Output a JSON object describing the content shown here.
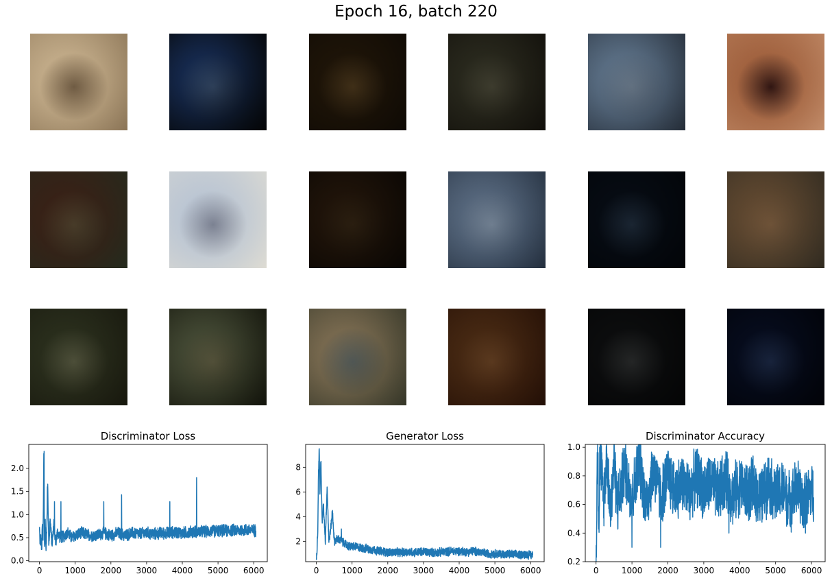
{
  "figure": {
    "title": "Epoch 16, batch 220"
  },
  "samples": {
    "rows": 3,
    "cols": 6,
    "items": [
      {
        "colors": [
          "#e3d6c0",
          "#8a7a66",
          "#b8a890"
        ],
        "label": ""
      },
      {
        "colors": [
          "#4f6f9a",
          "#d8e2ee",
          "#1c1f22"
        ],
        "label": ""
      },
      {
        "colors": [
          "#5a4a2e",
          "#d9c39a",
          "#3a3020"
        ],
        "label": ""
      },
      {
        "colors": [
          "#6a6a5a",
          "#b8b8a8",
          "#3e3a30"
        ],
        "label": ""
      },
      {
        "colors": [
          "#9fb0c0",
          "#c8cfd6",
          "#5a6470"
        ],
        "label": ""
      },
      {
        "colors": [
          "#c89a7a",
          "#3a2020",
          "#e0c0a8"
        ],
        "label": ""
      },
      {
        "colors": [
          "#7a5a4a",
          "#a89a80",
          "#5e6a58"
        ],
        "label": ""
      },
      {
        "colors": [
          "#d8dfe8",
          "#8a8fa0",
          "#f0eee8"
        ],
        "label": ""
      },
      {
        "colors": [
          "#5e4a34",
          "#9a8a6a",
          "#2c2418"
        ],
        "label": ""
      },
      {
        "colors": [
          "#9aa8b8",
          "#e8ecf0",
          "#5a6878"
        ],
        "label": ""
      },
      {
        "colors": [
          "#2a3848",
          "#cfd6de",
          "#16202a"
        ],
        "label": ""
      },
      {
        "colors": [
          "#a08a70",
          "#d2b08e",
          "#6a6458"
        ],
        "label": ""
      },
      {
        "colors": [
          "#6a7058",
          "#d8d6c8",
          "#4a4a38"
        ],
        "label": ""
      },
      {
        "colors": [
          "#8a907a",
          "#cfc2a8",
          "#3e4030"
        ],
        "label": ""
      },
      {
        "colors": [
          "#b8ab94",
          "#8a9cb0",
          "#6e7060"
        ],
        "label": ""
      },
      {
        "colors": [
          "#8a6a48",
          "#c8b090",
          "#5a3a24"
        ],
        "label": ""
      },
      {
        "colors": [
          "#3a3c3e",
          "#d0d0c8",
          "#1e2022"
        ],
        "label": ""
      },
      {
        "colors": [
          "#2a3a5a",
          "#d0d8e6",
          "#101828"
        ],
        "label": ""
      }
    ]
  },
  "chart_data": [
    {
      "type": "line",
      "title": "Discriminator Loss",
      "xlabel": "",
      "ylabel": "",
      "xlim": [
        -300,
        6380
      ],
      "ylim": [
        -0.02,
        2.52
      ],
      "xticks": [
        0,
        1000,
        2000,
        3000,
        4000,
        5000,
        6000
      ],
      "yticks": [
        0.0,
        0.5,
        1.0,
        1.5,
        2.0
      ],
      "ytick_labels": [
        "0.0",
        "0.5",
        "1.0",
        "1.5",
        "2.0"
      ],
      "grid": false,
      "color": "#1f77b4",
      "x": [
        0,
        20,
        40,
        60,
        80,
        100,
        120,
        140,
        160,
        180,
        200,
        230,
        260,
        300,
        350,
        400,
        450,
        500,
        600,
        700,
        800,
        900,
        1000,
        1200,
        1400,
        1600,
        1800,
        2000,
        2200,
        2400,
        2600,
        2800,
        3000,
        3200,
        3400,
        3600,
        3800,
        4000,
        4200,
        4400,
        4600,
        4800,
        5000,
        5200,
        5400,
        5600,
        5800,
        6000,
        6060
      ],
      "y": [
        0.7,
        0.3,
        0.5,
        0.2,
        0.8,
        0.4,
        2.37,
        0.3,
        0.9,
        0.2,
        0.6,
        1.6,
        0.3,
        0.9,
        0.35,
        0.8,
        0.4,
        0.6,
        0.5,
        0.55,
        0.6,
        0.5,
        0.55,
        0.6,
        0.55,
        0.55,
        0.6,
        0.55,
        0.6,
        0.55,
        0.6,
        0.58,
        0.6,
        0.58,
        0.6,
        0.6,
        0.62,
        0.6,
        0.62,
        0.63,
        0.63,
        0.64,
        0.65,
        0.65,
        0.66,
        0.66,
        0.67,
        0.66,
        0.65
      ],
      "spikes": [
        {
          "x": 130,
          "y": 2.37
        },
        {
          "x": 220,
          "y": 1.6
        },
        {
          "x": 420,
          "y": 1.28
        },
        {
          "x": 600,
          "y": 1.28
        },
        {
          "x": 1800,
          "y": 1.28
        },
        {
          "x": 2300,
          "y": 1.43
        },
        {
          "x": 3650,
          "y": 1.28
        },
        {
          "x": 4400,
          "y": 1.8
        },
        {
          "x": 6000,
          "y": 0.78
        }
      ],
      "band": {
        "low": 0.48,
        "high": 0.78
      }
    },
    {
      "type": "line",
      "title": "Generator Loss",
      "xlabel": "",
      "ylabel": "",
      "xlim": [
        -300,
        6380
      ],
      "ylim": [
        0.35,
        9.85
      ],
      "xticks": [
        0,
        1000,
        2000,
        3000,
        4000,
        5000,
        6000
      ],
      "yticks": [
        2,
        4,
        6,
        8
      ],
      "ytick_labels": [
        "2",
        "4",
        "6",
        "8"
      ],
      "grid": false,
      "color": "#1f77b4",
      "x": [
        0,
        20,
        40,
        60,
        80,
        100,
        130,
        160,
        200,
        250,
        300,
        350,
        400,
        450,
        500,
        600,
        700,
        800,
        900,
        1000,
        1200,
        1400,
        1600,
        1800,
        2000,
        2200,
        2400,
        2600,
        2800,
        3000,
        3200,
        3400,
        3600,
        3800,
        4000,
        4200,
        4400,
        4600,
        4800,
        5000,
        5200,
        5400,
        5600,
        5800,
        6000,
        6060
      ],
      "y": [
        0.8,
        1.5,
        3.0,
        7.6,
        9.5,
        6.0,
        8.3,
        3.5,
        5.0,
        2.0,
        6.4,
        2.0,
        3.0,
        4.5,
        2.0,
        2.2,
        2.0,
        1.8,
        1.6,
        1.6,
        1.5,
        1.4,
        1.3,
        1.2,
        1.1,
        1.1,
        1.1,
        1.15,
        1.1,
        1.15,
        1.1,
        1.1,
        1.15,
        1.2,
        1.2,
        1.15,
        1.2,
        1.1,
        1.0,
        1.0,
        0.95,
        0.95,
        0.9,
        0.95,
        0.9,
        0.9
      ],
      "spikes": [
        {
          "x": 80,
          "y": 9.5
        },
        {
          "x": 120,
          "y": 8.4
        },
        {
          "x": 300,
          "y": 6.4
        },
        {
          "x": 450,
          "y": 4.5
        },
        {
          "x": 700,
          "y": 3.0
        }
      ],
      "band": {
        "low": 0.8,
        "high": 1.6
      }
    },
    {
      "type": "line",
      "title": "Discriminator Accuracy",
      "xlabel": "",
      "ylabel": "",
      "xlim": [
        -300,
        6380
      ],
      "ylim": [
        0.2,
        1.02
      ],
      "xticks": [
        0,
        1000,
        2000,
        3000,
        4000,
        5000,
        6000
      ],
      "yticks": [
        0.2,
        0.4,
        0.6,
        0.8,
        1.0
      ],
      "ytick_labels": [
        "0.2",
        "0.4",
        "0.6",
        "0.8",
        "1.0"
      ],
      "grid": false,
      "color": "#1f77b4",
      "x": [
        0,
        20,
        40,
        80,
        120,
        200,
        300,
        400,
        500,
        600,
        800,
        1000,
        1200,
        1400,
        1600,
        1800,
        2000,
        2200,
        2400,
        2600,
        2800,
        3000,
        3200,
        3400,
        3600,
        3800,
        4000,
        4200,
        4400,
        4600,
        4800,
        5000,
        5200,
        5400,
        5600,
        5800,
        6000,
        6060
      ],
      "y": [
        0.24,
        0.6,
        1.0,
        0.5,
        0.99,
        0.6,
        0.95,
        0.55,
        0.9,
        0.6,
        0.85,
        0.65,
        0.9,
        0.6,
        0.85,
        0.65,
        0.8,
        0.7,
        0.75,
        0.68,
        0.8,
        0.7,
        0.75,
        0.68,
        0.78,
        0.66,
        0.74,
        0.68,
        0.72,
        0.64,
        0.76,
        0.66,
        0.7,
        0.62,
        0.72,
        0.6,
        0.7,
        0.65
      ],
      "spikes": [
        {
          "x": 10,
          "y": 0.24
        },
        {
          "x": 100,
          "y": 1.0
        },
        {
          "x": 1000,
          "y": 0.3
        },
        {
          "x": 1800,
          "y": 0.3
        },
        {
          "x": 2000,
          "y": 0.96
        },
        {
          "x": 3700,
          "y": 0.4
        }
      ],
      "band": {
        "low": 0.45,
        "high": 0.92
      }
    }
  ]
}
